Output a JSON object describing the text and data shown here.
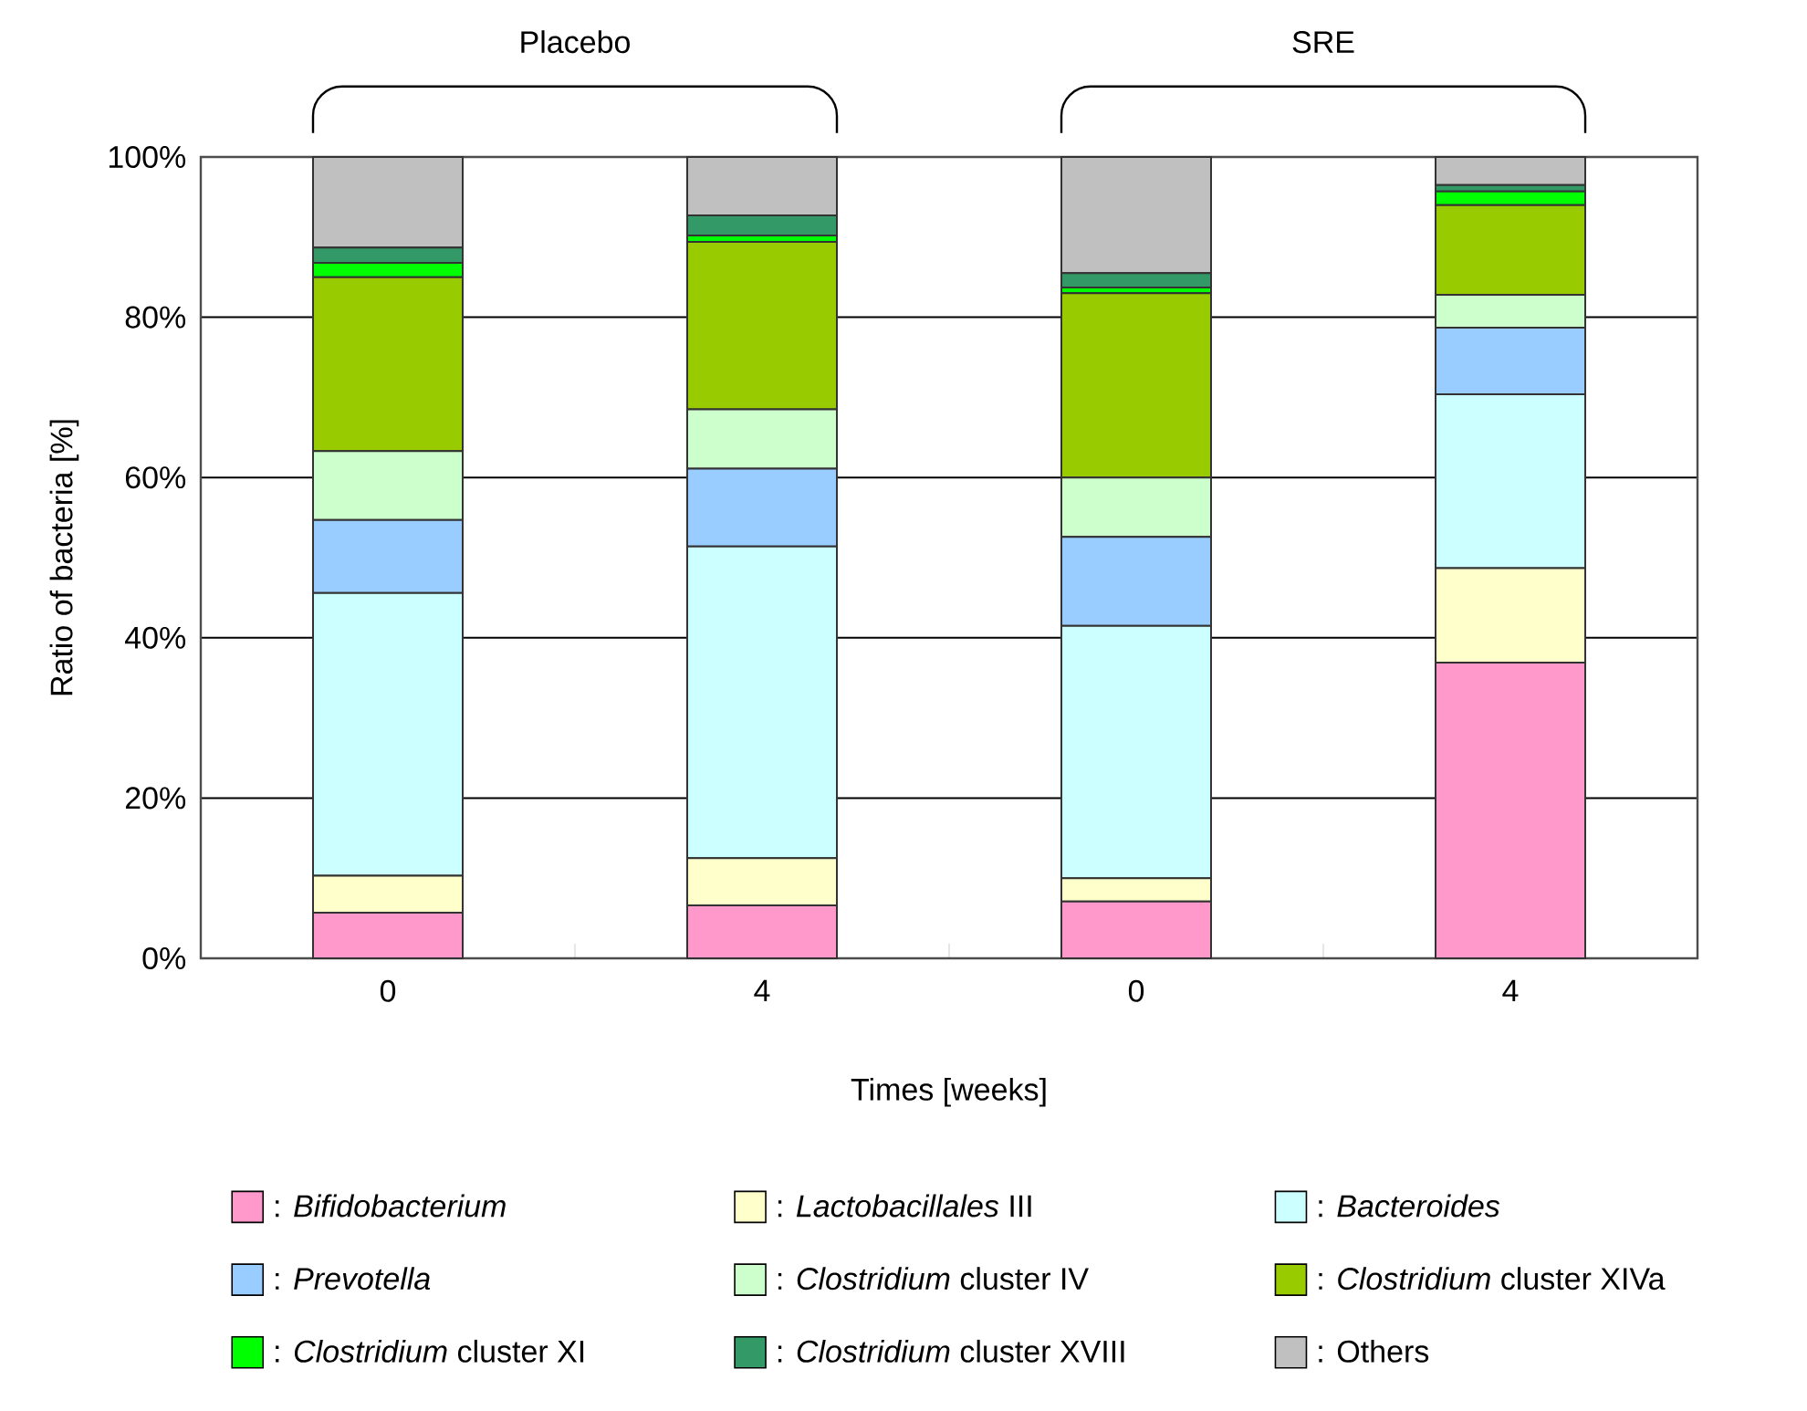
{
  "chart_data": {
    "type": "bar",
    "stacked": true,
    "categories": [
      "0",
      "4",
      "0",
      "4"
    ],
    "xlabel": "Times [weeks]",
    "ylabel": "Ratio of bacteria [%]",
    "ylim": [
      0,
      100
    ],
    "yticks": [
      {
        "value": 0,
        "label": "0%"
      },
      {
        "value": 20,
        "label": "20%"
      },
      {
        "value": 40,
        "label": "40%"
      },
      {
        "value": 60,
        "label": "60%"
      },
      {
        "value": 80,
        "label": "80%"
      },
      {
        "value": 100,
        "label": "100%"
      }
    ],
    "grid": "y",
    "legend": "bottom",
    "annotations": [
      "Placebo",
      "SRE"
    ],
    "series": [
      {
        "name": ": *Bifidobacterium*",
        "color": "#ff99cc",
        "values": [
          5.7,
          6.6,
          7.1,
          36.9
        ]
      },
      {
        "name": ": *Lactobacillales* III",
        "color": "#ffffcc",
        "values": [
          4.6,
          5.9,
          2.9,
          11.8
        ]
      },
      {
        "name": ": *Bacteroides*",
        "color": "#ccffff",
        "values": [
          35.3,
          38.9,
          31.5,
          21.7
        ]
      },
      {
        "name": ": *Prevotella*",
        "color": "#99ccff",
        "values": [
          9.1,
          9.7,
          11.1,
          8.3
        ]
      },
      {
        "name": ": *Clostridium* cluster IV",
        "color": "#ccffcc",
        "values": [
          8.6,
          7.4,
          7.4,
          4.1
        ]
      },
      {
        "name": ": *Clostridium* cluster XIVa",
        "color": "#99cc00",
        "values": [
          21.7,
          20.9,
          23.0,
          11.2
        ]
      },
      {
        "name": ": *Clostridium* cluster XI",
        "color": "#00ff00",
        "values": [
          1.8,
          0.8,
          0.7,
          1.7
        ]
      },
      {
        "name": ": *Clostridium* cluster XVIII",
        "color": "#339966",
        "values": [
          1.9,
          2.5,
          1.8,
          0.8
        ]
      },
      {
        "name": ": Others",
        "color": "#c0c0c0",
        "values": [
          11.3,
          7.3,
          14.5,
          3.5
        ]
      }
    ]
  }
}
